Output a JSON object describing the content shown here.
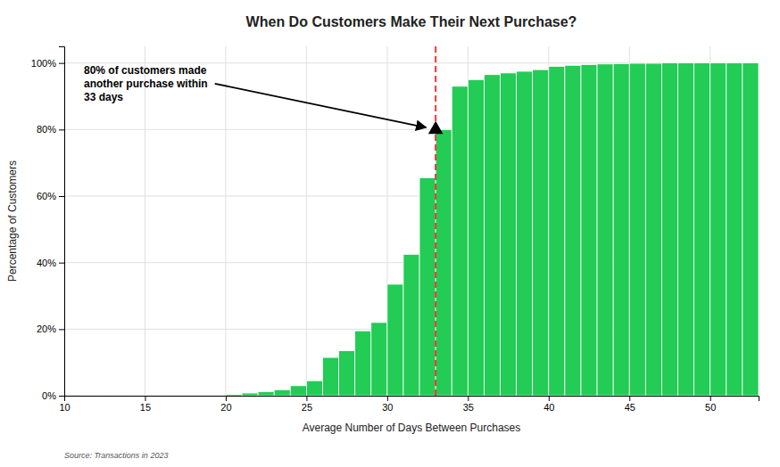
{
  "chart_data": {
    "type": "histogram",
    "title": "When Do Customers Make Their Next Purchase?",
    "x_label": "Average Number of Days Between Purchases",
    "y_label": "Percentage of Customers",
    "source": "Source: Transactions in 2023",
    "color": "#22cc55",
    "grid": true,
    "bins": [
      11,
      12,
      13,
      14,
      15,
      16,
      17,
      18,
      19,
      20,
      21,
      22,
      23,
      24,
      25,
      26,
      27,
      28,
      29,
      30,
      31,
      32,
      33,
      34,
      35,
      36,
      37,
      38,
      39,
      40,
      41,
      42,
      43,
      44,
      45,
      46,
      47,
      48,
      49,
      50,
      51,
      52,
      53
    ],
    "values": [
      0.001,
      0.001,
      0.001,
      0.001,
      0.001,
      0.001,
      0.001,
      0.001,
      0.001,
      0.004,
      0.008,
      0.012,
      0.018,
      0.03,
      0.045,
      0.115,
      0.135,
      0.195,
      0.22,
      0.335,
      0.425,
      0.655,
      0.8,
      0.93,
      0.95,
      0.965,
      0.97,
      0.975,
      0.98,
      0.99,
      0.993,
      0.995,
      0.997,
      0.998,
      0.999,
      0.999,
      1.0,
      1.0,
      1.0,
      1.0,
      1.0,
      1.0
    ],
    "xlim": [
      10,
      53
    ],
    "ylim": [
      0,
      1.05
    ],
    "xticks": [
      10,
      15,
      20,
      25,
      30,
      35,
      40,
      45,
      50
    ],
    "yticks": [
      {
        "value": 0,
        "label": "0%"
      },
      {
        "value": 0.2,
        "label": "20%"
      },
      {
        "value": 0.4,
        "label": "40%"
      },
      {
        "value": 0.6,
        "label": "60%"
      },
      {
        "value": 0.8,
        "label": "80%"
      },
      {
        "value": 1.0,
        "label": "100%"
      }
    ],
    "reference_lines": [
      {
        "x": 33,
        "color": "#ff3333",
        "line_style": "dashed"
      }
    ],
    "annotations": [
      {
        "text": "80% of customers made\nanother purchase within\n33 days",
        "x": 33,
        "y": 0.8,
        "marker": "triangle"
      }
    ]
  }
}
